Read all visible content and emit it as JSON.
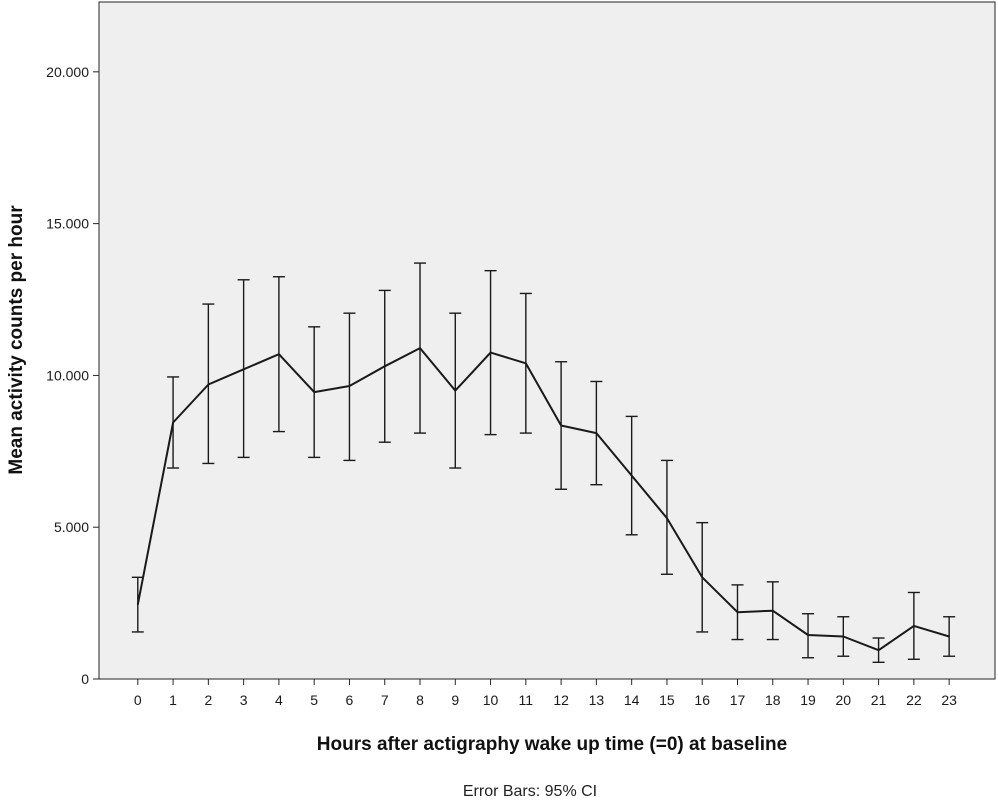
{
  "chart_data": {
    "type": "line",
    "xlabel": "Hours after actigraphy wake up time (=0) at baseline",
    "ylabel": "Mean activity counts per hour",
    "footnote": "Error Bars: 95% CI",
    "x": [
      0,
      1,
      2,
      3,
      4,
      5,
      6,
      7,
      8,
      9,
      10,
      11,
      12,
      13,
      14,
      15,
      16,
      17,
      18,
      19,
      20,
      21,
      22,
      23
    ],
    "x_tick_labels": [
      "0",
      "1",
      "2",
      "3",
      "4",
      "5",
      "6",
      "7",
      "8",
      "9",
      "10",
      "11",
      "12",
      "13",
      "14",
      "15",
      "16",
      "17",
      "18",
      "19",
      "20",
      "21",
      "22",
      "23"
    ],
    "xlim": [
      -1.1,
      24.3
    ],
    "ylim": [
      0,
      22300
    ],
    "y_ticks": [
      0,
      5000,
      10000,
      15000,
      20000
    ],
    "y_tick_labels": [
      "0",
      "5.000",
      "10.000",
      "15.000",
      "20.000"
    ],
    "series": [
      {
        "values": [
          2450,
          8450,
          9700,
          10200,
          10700,
          9450,
          9650,
          10300,
          10900,
          9500,
          10750,
          10400,
          8350,
          8100,
          6700,
          5300,
          3350,
          2200,
          2250,
          1450,
          1400,
          950,
          1750,
          1400
        ],
        "ci_lower": [
          1550,
          6950,
          7100,
          7300,
          8150,
          7300,
          7200,
          7800,
          8100,
          6950,
          8050,
          8100,
          6250,
          6400,
          4750,
          3450,
          1550,
          1300,
          1300,
          700,
          750,
          550,
          650,
          750
        ],
        "ci_upper": [
          3350,
          9950,
          12350,
          13150,
          13250,
          11600,
          12050,
          12800,
          13700,
          12050,
          13450,
          12700,
          10450,
          9800,
          8650,
          7200,
          5150,
          3100,
          3200,
          2150,
          2050,
          1350,
          2850,
          2050
        ]
      }
    ],
    "grid": false,
    "colors": {
      "plot_background": "#efefef",
      "line": "#1a1a1a",
      "frame": "#262626"
    }
  }
}
